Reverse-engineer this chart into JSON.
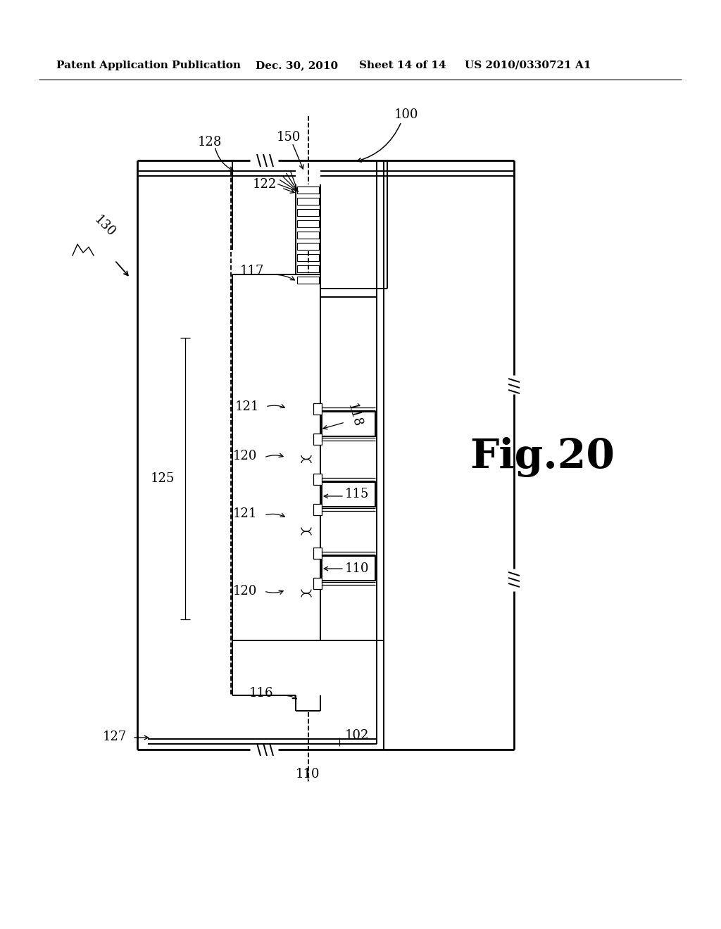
{
  "background_color": "#ffffff",
  "header_text": "Patent Application Publication",
  "header_date": "Dec. 30, 2010",
  "header_sheet": "Sheet 14 of 14",
  "header_patent": "US 2010/0330721 A1",
  "fig_label": "Fig.20",
  "lw_main": 1.4,
  "lw_thick": 2.0,
  "label_fs": 13
}
